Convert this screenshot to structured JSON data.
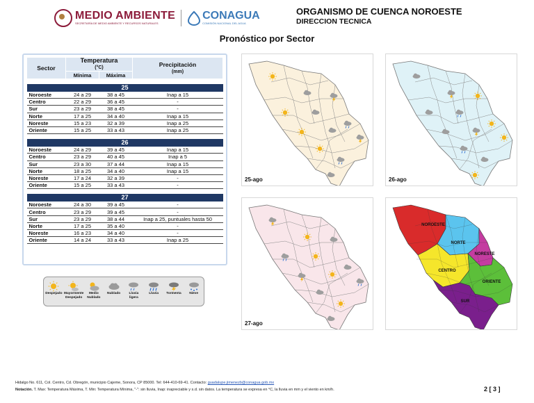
{
  "header": {
    "medio_ambiente": "MEDIO AMBIENTE",
    "medio_ambiente_sub": "SECRETARÍA DE MEDIO AMBIENTE Y RECURSOS NATURALES",
    "conagua": "CONAGUA",
    "conagua_sub": "COMISIÓN NACIONAL DEL AGUA",
    "org": "ORGANISMO DE CUENCA NOROESTE",
    "direction": "DIRECCION TECNICA"
  },
  "page_title": "Pronóstico por Sector",
  "table": {
    "col_sector": "Sector",
    "col_temp": "Temperatura",
    "col_temp_unit": "(°C)",
    "col_min": "Mínima",
    "col_max": "Máxima",
    "col_precip": "Precipitación",
    "col_precip_unit": "(mm)",
    "days": [
      {
        "day": "25",
        "rows": [
          {
            "sector": "Noroeste",
            "min": "24 a 29",
            "max": "38 a 45",
            "precip": "Inap a 15"
          },
          {
            "sector": "Centro",
            "min": "22 a 29",
            "max": "36 a 45",
            "precip": "-"
          },
          {
            "sector": "Sur",
            "min": "23 a 29",
            "max": "38 a 45",
            "precip": "-"
          },
          {
            "sector": "Norte",
            "min": "17 a 25",
            "max": "34 a 40",
            "precip": "Inap a 15"
          },
          {
            "sector": "Noreste",
            "min": "15 a 23",
            "max": "32 a 39",
            "precip": "Inap a 25"
          },
          {
            "sector": "Oriente",
            "min": "15 a 25",
            "max": "33 a 43",
            "precip": "Inap a 25"
          }
        ]
      },
      {
        "day": "26",
        "rows": [
          {
            "sector": "Noroeste",
            "min": "24 a 29",
            "max": "39 a 45",
            "precip": "Inap a 15"
          },
          {
            "sector": "Centro",
            "min": "23 a 29",
            "max": "40 a 45",
            "precip": "Inap a 5"
          },
          {
            "sector": "Sur",
            "min": "23 a 30",
            "max": "37 a 44",
            "precip": "Inap a 15"
          },
          {
            "sector": "Norte",
            "min": "18 a 25",
            "max": "34 a 40",
            "precip": "Inap a 15"
          },
          {
            "sector": "Noreste",
            "min": "17 a 24",
            "max": "32 a 39",
            "precip": "-"
          },
          {
            "sector": "Oriente",
            "min": "15 a 25",
            "max": "33 a 43",
            "precip": "-"
          }
        ]
      },
      {
        "day": "27",
        "rows": [
          {
            "sector": "Noroeste",
            "min": "24 a 30",
            "max": "39 a 45",
            "precip": "-"
          },
          {
            "sector": "Centro",
            "min": "23 a 29",
            "max": "39 a 45",
            "precip": "-"
          },
          {
            "sector": "Sur",
            "min": "23 a 29",
            "max": "38 a 44",
            "precip": "Inap a 25, puntuales hasta 50"
          },
          {
            "sector": "Norte",
            "min": "17 a 25",
            "max": "35 a 40",
            "precip": "-"
          },
          {
            "sector": "Noreste",
            "min": "16 a 23",
            "max": "34 a 40",
            "precip": "-"
          },
          {
            "sector": "Oriente",
            "min": "14 a 24",
            "max": "33 a 43",
            "precip": "Inap a 25"
          }
        ]
      }
    ]
  },
  "legend": [
    {
      "label": "Despejado",
      "icon": "sun-icon"
    },
    {
      "label": "Mayormente Despejado",
      "icon": "mostly-sunny-icon"
    },
    {
      "label": "Medio Nublado",
      "icon": "partly-cloudy-icon"
    },
    {
      "label": "Nublado",
      "icon": "cloud-icon"
    },
    {
      "label": "Lluvia ligera",
      "icon": "light-rain-icon"
    },
    {
      "label": "Lluvia",
      "icon": "rain-icon"
    },
    {
      "label": "Tormenta",
      "icon": "storm-icon"
    },
    {
      "label": "Nieve",
      "icon": "snow-icon"
    }
  ],
  "maps": [
    {
      "label": "25-ago",
      "fill": "#fbf1dd"
    },
    {
      "label": "26-ago",
      "fill": "#dff2f7"
    },
    {
      "label": "27-ago",
      "fill": "#f9e6ea"
    }
  ],
  "sector_map": {
    "labels": [
      "NOROESTE",
      "NORTE",
      "NORESTE",
      "CENTRO",
      "ORIENTE",
      "SUR"
    ],
    "colors": {
      "NOROESTE": "#d92b2b",
      "NORTE": "#5bc4ee",
      "NORESTE": "#c43ca0",
      "CENTRO": "#f5e62b",
      "ORIENTE": "#5cbf3a",
      "SUR": "#7a1f8c"
    }
  },
  "footer": {
    "address": "Hidalgo No. 611, Col. Centro, Cd. Obregón, municipio Cajeme, Sonora, CP 85000. Tel: 644-410-69-41. Contacto: ",
    "email": "guadalupe.jimenezb@conagua.gob.mx",
    "note_label": "Notación.",
    "note": " T. Max: Temperatura Máxima, T. Min: Temperatura Mínima, \"-\": sin lluvia, Inap: inapreciable y s.d. sin datos. La temperatura se expresa en °C, la lluvia en mm y el viento en km/h.",
    "page": "2 [ 3 ]"
  }
}
